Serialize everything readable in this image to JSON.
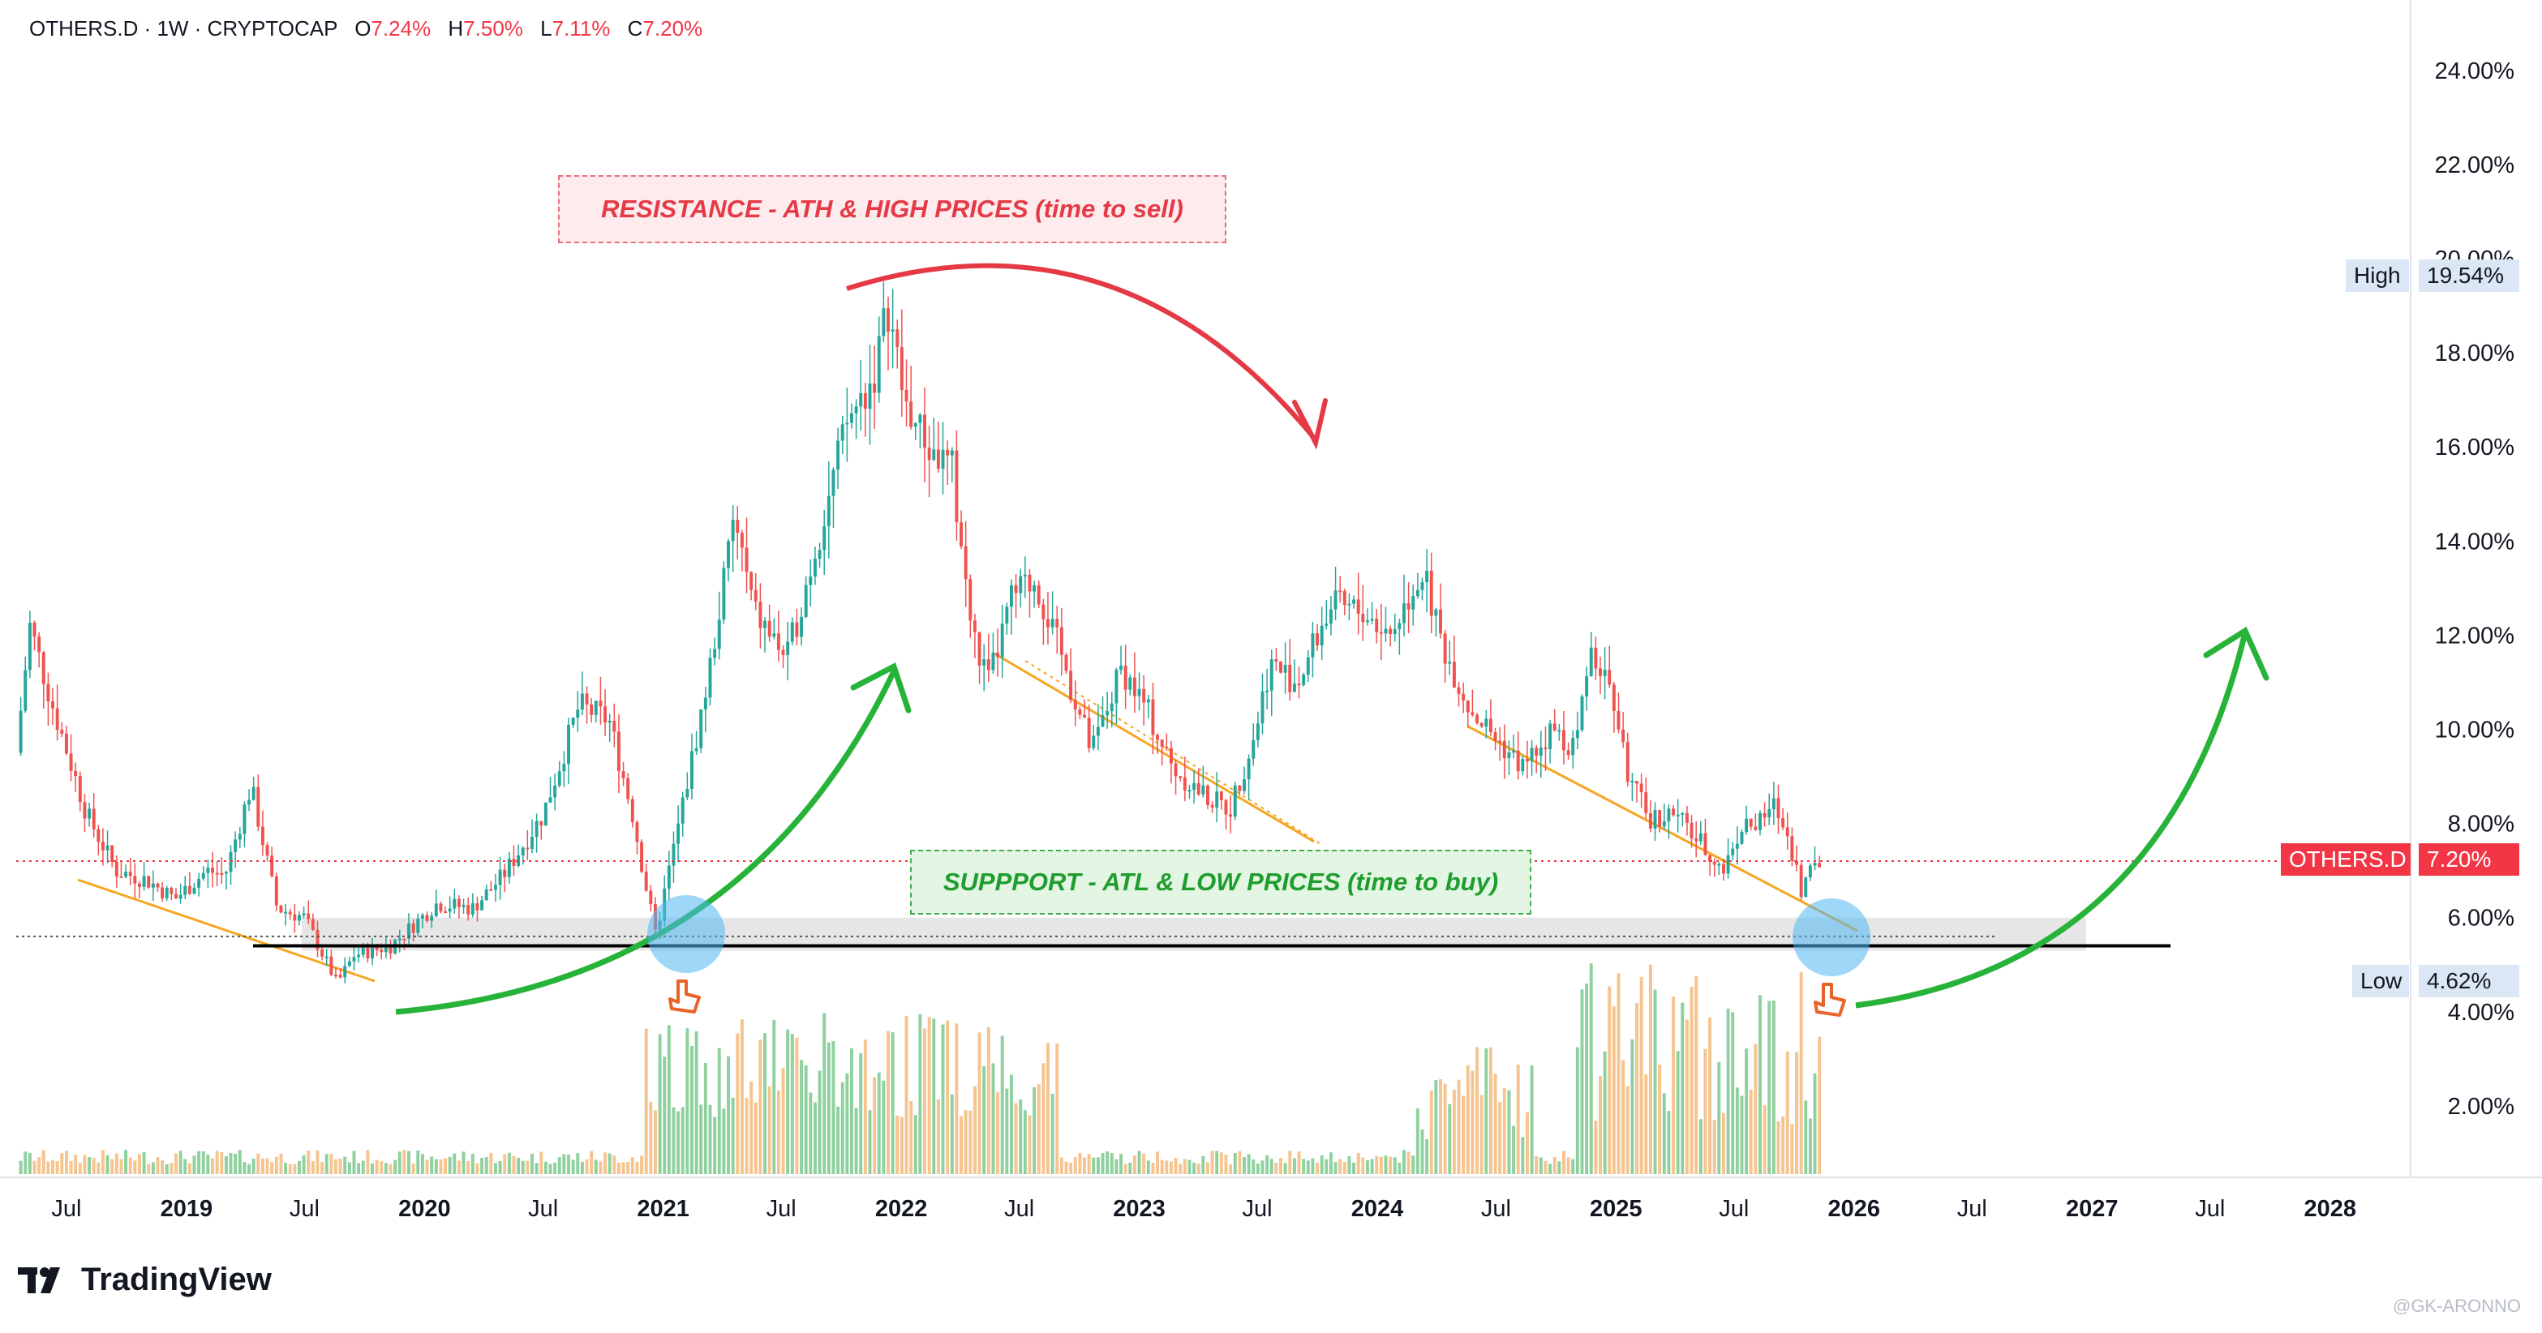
{
  "header": {
    "symbol": "OTHERS.D · 1W · CRYPTOCAP",
    "o_label": "O",
    "o_value": "7.24%",
    "h_label": "H",
    "h_value": "7.50%",
    "l_label": "L",
    "l_value": "7.11%",
    "c_label": "C",
    "c_value": "7.20%"
  },
  "annotations": {
    "resistance": "RESISTANCE - ATH & HIGH PRICES  (time to sell)",
    "support": "SUPPPORT - ATL & LOW PRICES (time to buy)"
  },
  "badges": {
    "high_label": "High",
    "high_value": "19.54%",
    "last_label": "OTHERS.D",
    "last_value": "7.20%",
    "low_label": "Low",
    "low_value": "4.62%"
  },
  "branding": {
    "logo_text": "TradingView",
    "watermark": "@GK-ARONNO"
  },
  "colors": {
    "up": "#26a69a",
    "down": "#ef5350",
    "accent_red": "#e53945",
    "accent_green": "#27b33a",
    "trendline": "#f5a623",
    "support_zone": "#e6e6e6"
  },
  "chart_data": {
    "type": "candlestick",
    "symbol": "OTHERS.D",
    "interval": "1W",
    "exchange": "CRYPTOCAP",
    "xlabel": "",
    "ylabel": "",
    "x_range": [
      "2018-04-15",
      "2028-05-01"
    ],
    "ylim": [
      0,
      25
    ],
    "y_unit": "%",
    "y_ticks": [
      "2.00%",
      "4.00%",
      "6.00%",
      "8.00%",
      "10.00%",
      "12.00%",
      "14.00%",
      "16.00%",
      "18.00%",
      "20.00%",
      "22.00%",
      "24.00%"
    ],
    "y_tick_values": [
      2,
      4,
      6,
      8,
      10,
      12,
      14,
      16,
      18,
      20,
      22,
      24
    ],
    "x_ticks": [
      {
        "label": "Jul",
        "date": "2018-07-01",
        "year": false
      },
      {
        "label": "2019",
        "date": "2019-01-01",
        "year": true
      },
      {
        "label": "Jul",
        "date": "2019-07-01",
        "year": false
      },
      {
        "label": "2020",
        "date": "2020-01-01",
        "year": true
      },
      {
        "label": "Jul",
        "date": "2020-07-01",
        "year": false
      },
      {
        "label": "2021",
        "date": "2021-01-01",
        "year": true
      },
      {
        "label": "Jul",
        "date": "2021-07-01",
        "year": false
      },
      {
        "label": "2022",
        "date": "2022-01-01",
        "year": true
      },
      {
        "label": "Jul",
        "date": "2022-07-01",
        "year": false
      },
      {
        "label": "2023",
        "date": "2023-01-01",
        "year": true
      },
      {
        "label": "Jul",
        "date": "2023-07-01",
        "year": false
      },
      {
        "label": "2024",
        "date": "2024-01-01",
        "year": true
      },
      {
        "label": "Jul",
        "date": "2024-07-01",
        "year": false
      },
      {
        "label": "2025",
        "date": "2025-01-01",
        "year": true
      },
      {
        "label": "Jul",
        "date": "2025-07-01",
        "year": false
      },
      {
        "label": "2026",
        "date": "2026-01-01",
        "year": true
      },
      {
        "label": "Jul",
        "date": "2026-07-01",
        "year": false
      },
      {
        "label": "2027",
        "date": "2027-01-01",
        "year": true
      },
      {
        "label": "Jul",
        "date": "2027-07-01",
        "year": false
      },
      {
        "label": "2028",
        "date": "2028-01-01",
        "year": true
      }
    ],
    "price_path": [
      [
        "2018-04-15",
        9.5
      ],
      [
        "2018-05-06",
        12.2
      ],
      [
        "2018-06-10",
        10.5
      ],
      [
        "2018-08-01",
        8.2
      ],
      [
        "2018-09-15",
        7.0
      ],
      [
        "2018-11-01",
        6.8
      ],
      [
        "2018-12-15",
        6.4
      ],
      [
        "2019-02-01",
        7.0
      ],
      [
        "2019-03-01",
        6.9
      ],
      [
        "2019-04-10",
        8.8
      ],
      [
        "2019-05-20",
        6.2
      ],
      [
        "2019-07-01",
        6.0
      ],
      [
        "2019-08-20",
        4.6
      ],
      [
        "2019-09-15",
        5.2
      ],
      [
        "2019-11-10",
        5.4
      ],
      [
        "2020-01-20",
        6.3
      ],
      [
        "2020-03-15",
        6.2
      ],
      [
        "2020-05-01",
        6.9
      ],
      [
        "2020-07-01",
        8.2
      ],
      [
        "2020-08-25",
        10.5
      ],
      [
        "2020-10-10",
        10.2
      ],
      [
        "2020-11-15",
        8.2
      ],
      [
        "2020-12-20",
        5.6
      ],
      [
        "2021-01-25",
        8.0
      ],
      [
        "2021-03-10",
        11.0
      ],
      [
        "2021-04-20",
        14.5
      ],
      [
        "2021-05-20",
        12.5
      ],
      [
        "2021-07-10",
        11.5
      ],
      [
        "2021-08-25",
        14.0
      ],
      [
        "2021-10-10",
        16.5
      ],
      [
        "2021-11-20",
        17.5
      ],
      [
        "2021-12-12",
        19.0
      ],
      [
        "2022-01-05",
        17.0
      ],
      [
        "2022-02-10",
        16.0
      ],
      [
        "2022-03-20",
        15.5
      ],
      [
        "2022-04-20",
        12.0
      ],
      [
        "2022-05-15",
        11.0
      ],
      [
        "2022-06-20",
        12.8
      ],
      [
        "2022-07-25",
        13.2
      ],
      [
        "2022-09-05",
        11.5
      ],
      [
        "2022-10-20",
        9.5
      ],
      [
        "2022-12-05",
        11.3
      ],
      [
        "2023-01-10",
        10.5
      ],
      [
        "2023-02-20",
        9.2
      ],
      [
        "2023-04-10",
        8.6
      ],
      [
        "2023-05-20",
        8.3
      ],
      [
        "2023-06-25",
        9.8
      ],
      [
        "2023-07-20",
        11.4
      ],
      [
        "2023-09-01",
        11.0
      ],
      [
        "2023-10-20",
        12.6
      ],
      [
        "2023-12-10",
        12.5
      ],
      [
        "2024-01-20",
        12.0
      ],
      [
        "2024-03-10",
        13.4
      ],
      [
        "2024-04-10",
        11.8
      ],
      [
        "2024-05-20",
        10.5
      ],
      [
        "2024-07-01",
        9.8
      ],
      [
        "2024-08-10",
        9.2
      ],
      [
        "2024-09-25",
        10.0
      ],
      [
        "2024-11-01",
        9.6
      ],
      [
        "2024-11-20",
        11.8
      ],
      [
        "2024-12-25",
        10.8
      ],
      [
        "2025-01-20",
        9.0
      ],
      [
        "2025-02-20",
        8.1
      ],
      [
        "2025-04-01",
        8.2
      ],
      [
        "2025-05-10",
        7.6
      ],
      [
        "2025-06-15",
        7.0
      ],
      [
        "2025-07-10",
        7.9
      ],
      [
        "2025-08-10",
        8.0
      ],
      [
        "2025-09-01",
        8.4
      ],
      [
        "2025-09-25",
        7.6
      ],
      [
        "2025-10-12",
        6.6
      ],
      [
        "2025-10-26",
        7.0
      ],
      [
        "2025-11-12",
        7.2
      ]
    ],
    "high": 19.54,
    "low": 4.62,
    "last": 7.2,
    "support_zone": [
      5.3,
      6.0
    ],
    "support_line": 5.4,
    "last_price_line": 7.2
  }
}
